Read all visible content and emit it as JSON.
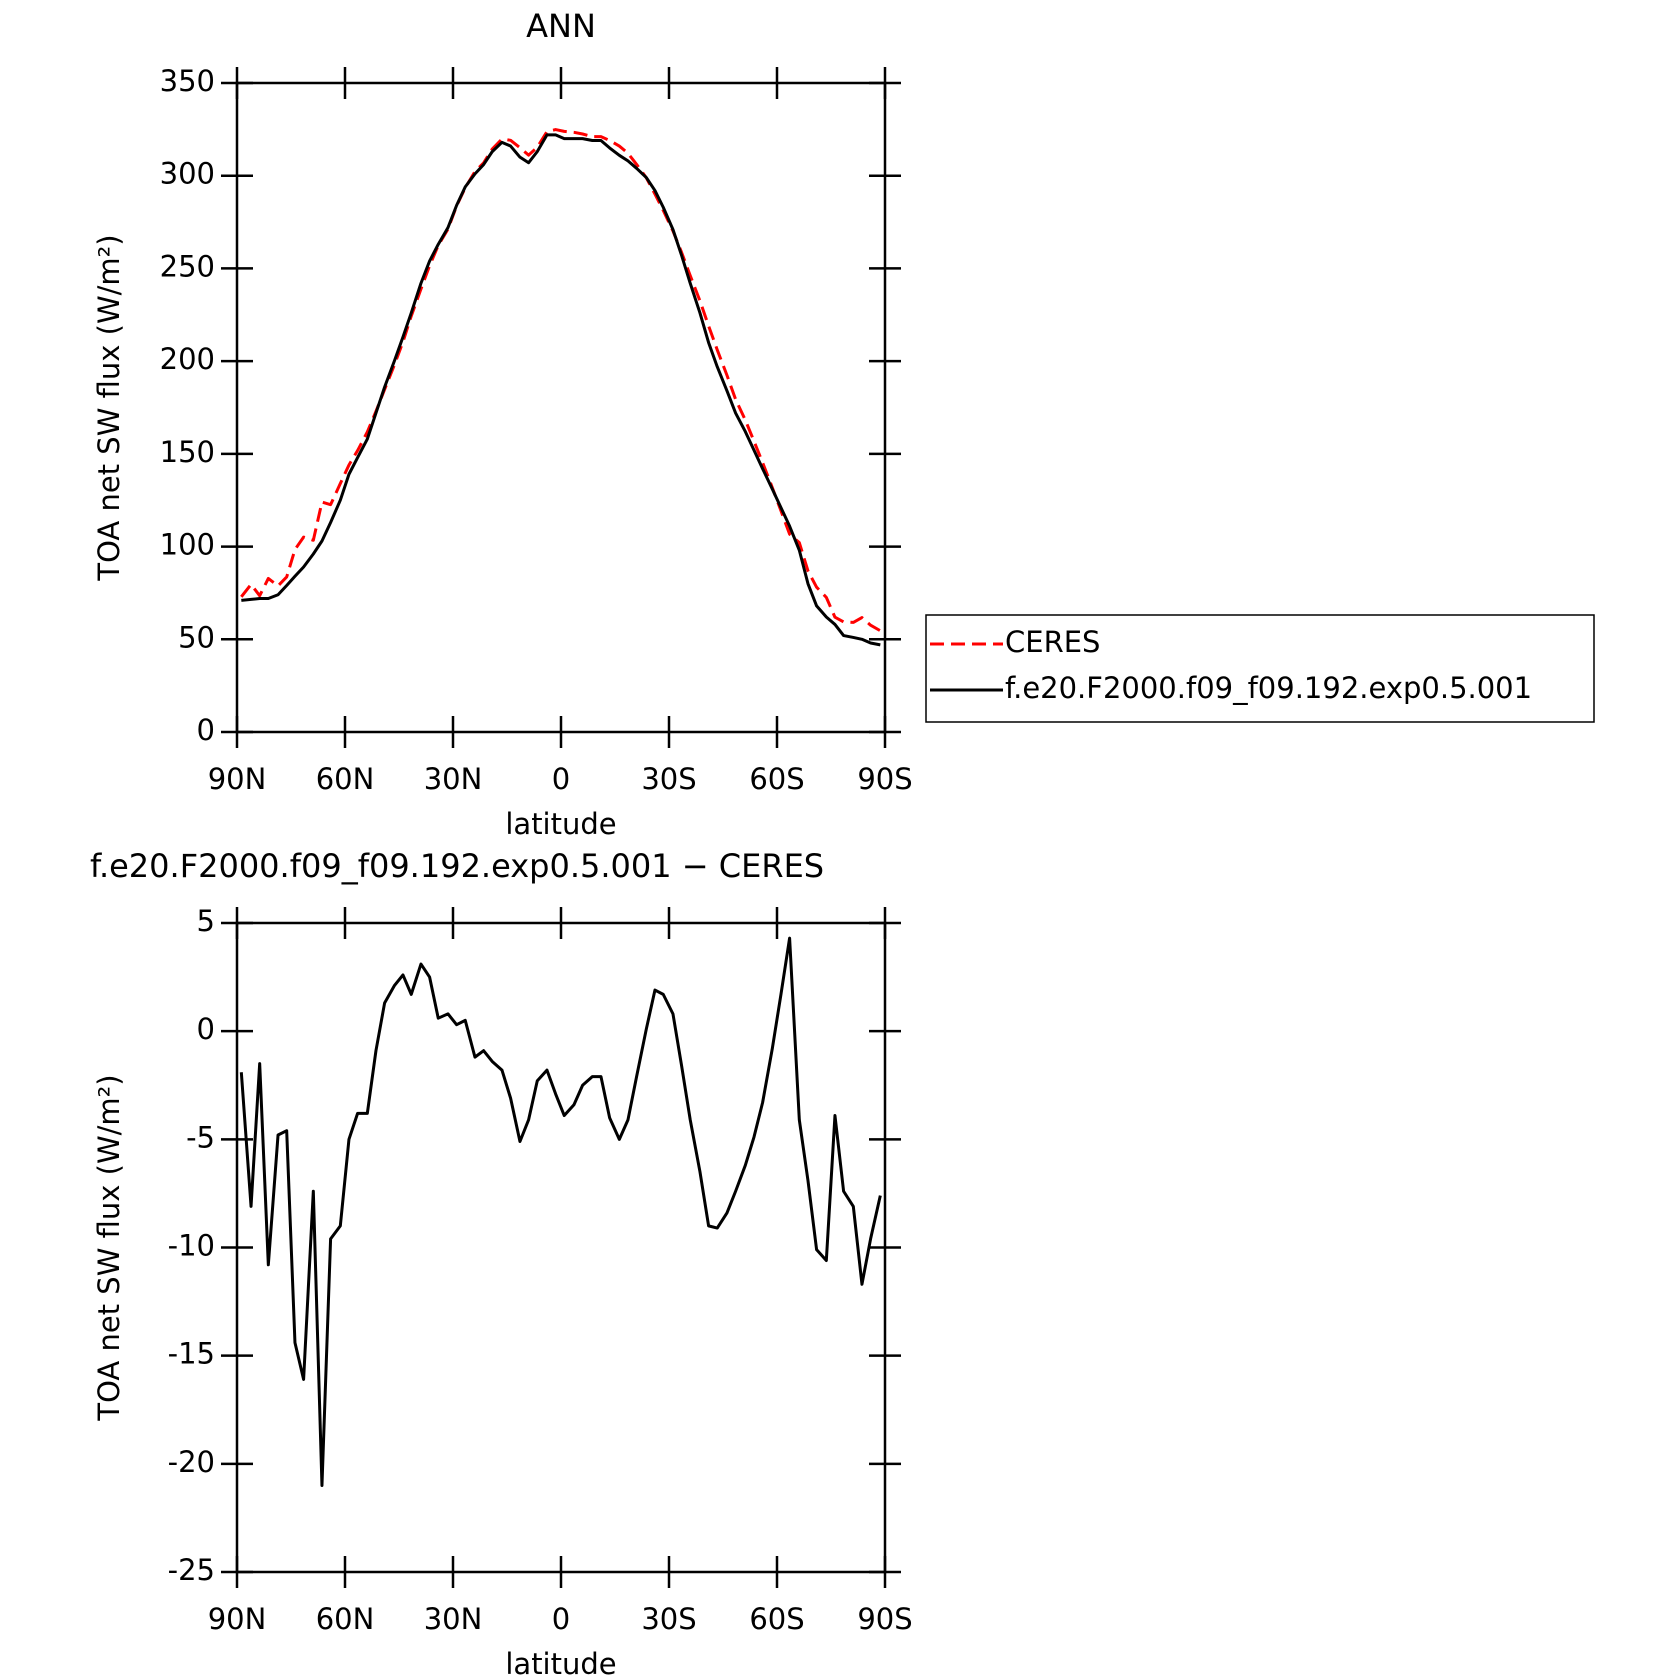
{
  "chart_data": [
    {
      "type": "line",
      "title": "ANN",
      "xlabel": "latitude",
      "ylabel": "TOA net SW flux (W/m²)",
      "x": [
        88.8,
        86.1,
        83.7,
        81.3,
        78.6,
        76.2,
        73.9,
        71.5,
        68.8,
        66.4,
        64.0,
        61.3,
        58.9,
        56.5,
        53.8,
        51.4,
        49.0,
        46.3,
        43.9,
        41.6,
        38.9,
        36.5,
        34.1,
        31.4,
        29.0,
        26.6,
        23.9,
        21.5,
        19.1,
        16.4,
        14.0,
        11.4,
        9.0,
        6.6,
        3.9,
        1.5,
        -0.9,
        -3.6,
        -6.0,
        -8.7,
        -11.1,
        -13.5,
        -16.2,
        -18.6,
        -21.0,
        -23.7,
        -26.1,
        -28.4,
        -31.1,
        -33.5,
        -35.9,
        -38.6,
        -41.0,
        -43.4,
        -46.1,
        -48.5,
        -51.2,
        -53.6,
        -56.0,
        -58.7,
        -61.1,
        -63.5,
        -66.2,
        -68.6,
        -71.0,
        -73.7,
        -76.1,
        -78.5,
        -81.2,
        -83.6,
        -86.0,
        -88.7
      ],
      "series": [
        {
          "name": "CERES",
          "color": "#ff0000",
          "line_style": "dashed",
          "values": [
            72.9,
            79.6,
            73.5,
            82.8,
            78.8,
            83.6,
            98.4,
            105.1,
            103.4,
            124,
            122.6,
            134,
            144,
            151.8,
            161.8,
            172.9,
            184.7,
            197.9,
            210.4,
            224.3,
            238.9,
            251.5,
            262.4,
            271.2,
            283.7,
            293.5,
            302.2,
            306.9,
            314.4,
            319.8,
            319.1,
            315.1,
            311.1,
            315.3,
            323.8,
            324.9,
            323.9,
            323.4,
            322.5,
            321.1,
            321.1,
            319,
            316,
            312.1,
            306.1,
            298.9,
            290.1,
            281.3,
            270.2,
            258.6,
            246.1,
            232.5,
            219,
            206.1,
            192.4,
            179.4,
            168.2,
            156.9,
            145.3,
            131.8,
            119.3,
            106.7,
            102.1,
            86.9,
            78.1,
            72.6,
            61.9,
            59.4,
            59.1,
            61.7,
            57.6,
            54.6
          ]
        },
        {
          "name": "f.e20.F2000.f09_f09.192.exp0.5.001",
          "color": "#000000",
          "line_style": "solid",
          "values": [
            71,
            71.5,
            72,
            72,
            74,
            79,
            84,
            89,
            96,
            103,
            113,
            125,
            139,
            148,
            158,
            172,
            186,
            200,
            213,
            226,
            242,
            254,
            263,
            272,
            284,
            294,
            301,
            306,
            313,
            318,
            316,
            310,
            307,
            313,
            322,
            322,
            320,
            320,
            320,
            319,
            319,
            315,
            311,
            308,
            304,
            299,
            292,
            283,
            271,
            257,
            242,
            226,
            210,
            197,
            184,
            172,
            162,
            152,
            142,
            131,
            121,
            111,
            98,
            80,
            68,
            62,
            58,
            52,
            51,
            50,
            48,
            47
          ]
        }
      ],
      "xlim": [
        90,
        -90
      ],
      "xticks": [
        {
          "value": 90,
          "label": "90N"
        },
        {
          "value": 60,
          "label": "60N"
        },
        {
          "value": 30,
          "label": "30N"
        },
        0,
        {
          "value": -30,
          "label": "30S"
        },
        {
          "value": -60,
          "label": "60S"
        },
        {
          "value": -90,
          "label": "90S"
        }
      ],
      "ylim": [
        0,
        350
      ],
      "yticks": [
        0,
        50,
        100,
        150,
        200,
        250,
        300,
        350
      ],
      "legend": "outside-right"
    },
    {
      "type": "line",
      "title": "f.e20.F2000.f09_f09.192.exp0.5.001 − CERES",
      "xlabel": "latitude",
      "ylabel": "TOA net SW flux (W/m²)",
      "x": [
        88.8,
        86.1,
        83.7,
        81.3,
        78.6,
        76.2,
        73.9,
        71.5,
        68.8,
        66.4,
        64.0,
        61.3,
        58.9,
        56.5,
        53.8,
        51.4,
        49.0,
        46.3,
        43.9,
        41.6,
        38.9,
        36.5,
        34.1,
        31.4,
        29.0,
        26.6,
        23.9,
        21.5,
        19.1,
        16.4,
        14.0,
        11.4,
        9.0,
        6.6,
        3.9,
        1.5,
        -0.9,
        -3.6,
        -6.0,
        -8.7,
        -11.1,
        -13.5,
        -16.2,
        -18.6,
        -21.0,
        -23.7,
        -26.1,
        -28.4,
        -31.1,
        -33.5,
        -35.9,
        -38.6,
        -41.0,
        -43.4,
        -46.1,
        -48.5,
        -51.2,
        -53.6,
        -56.0,
        -58.7,
        -61.1,
        -63.5,
        -66.2,
        -68.6,
        -71.0,
        -73.7,
        -76.1,
        -78.5,
        -81.2,
        -83.6,
        -86.0,
        -88.7
      ],
      "series": [
        {
          "color": "#000000",
          "line_style": "solid",
          "values": [
            -1.9,
            -8.1,
            -1.5,
            -10.8,
            -4.8,
            -4.6,
            -14.4,
            -16.1,
            -7.4,
            -21,
            -9.6,
            -9.0,
            -5.0,
            -3.8,
            -3.8,
            -0.9,
            1.3,
            2.1,
            2.6,
            1.7,
            3.1,
            2.5,
            0.6,
            0.8,
            0.3,
            0.5,
            -1.2,
            -0.9,
            -1.4,
            -1.8,
            -3.1,
            -5.1,
            -4.1,
            -2.3,
            -1.8,
            -2.9,
            -3.9,
            -3.4,
            -2.5,
            -2.1,
            -2.1,
            -4.0,
            -5.0,
            -4.1,
            -2.1,
            0.1,
            1.9,
            1.7,
            0.8,
            -1.6,
            -4.1,
            -6.5,
            -9.0,
            -9.1,
            -8.4,
            -7.4,
            -6.2,
            -4.9,
            -3.3,
            -0.8,
            1.7,
            4.3,
            -4.1,
            -6.9,
            -10.1,
            -10.6,
            -3.9,
            -7.4,
            -8.1,
            -11.7,
            -9.6,
            -7.6
          ]
        }
      ],
      "xlim": [
        90,
        -90
      ],
      "xticks": [
        {
          "value": 90,
          "label": "90N"
        },
        {
          "value": 60,
          "label": "60N"
        },
        {
          "value": 30,
          "label": "30N"
        },
        0,
        {
          "value": -30,
          "label": "30S"
        },
        {
          "value": -60,
          "label": "60S"
        },
        {
          "value": -90,
          "label": "90S"
        }
      ],
      "ylim": [
        -25,
        5
      ],
      "yticks": [
        -25,
        -20,
        -15,
        -10,
        -5,
        0,
        5
      ]
    }
  ]
}
